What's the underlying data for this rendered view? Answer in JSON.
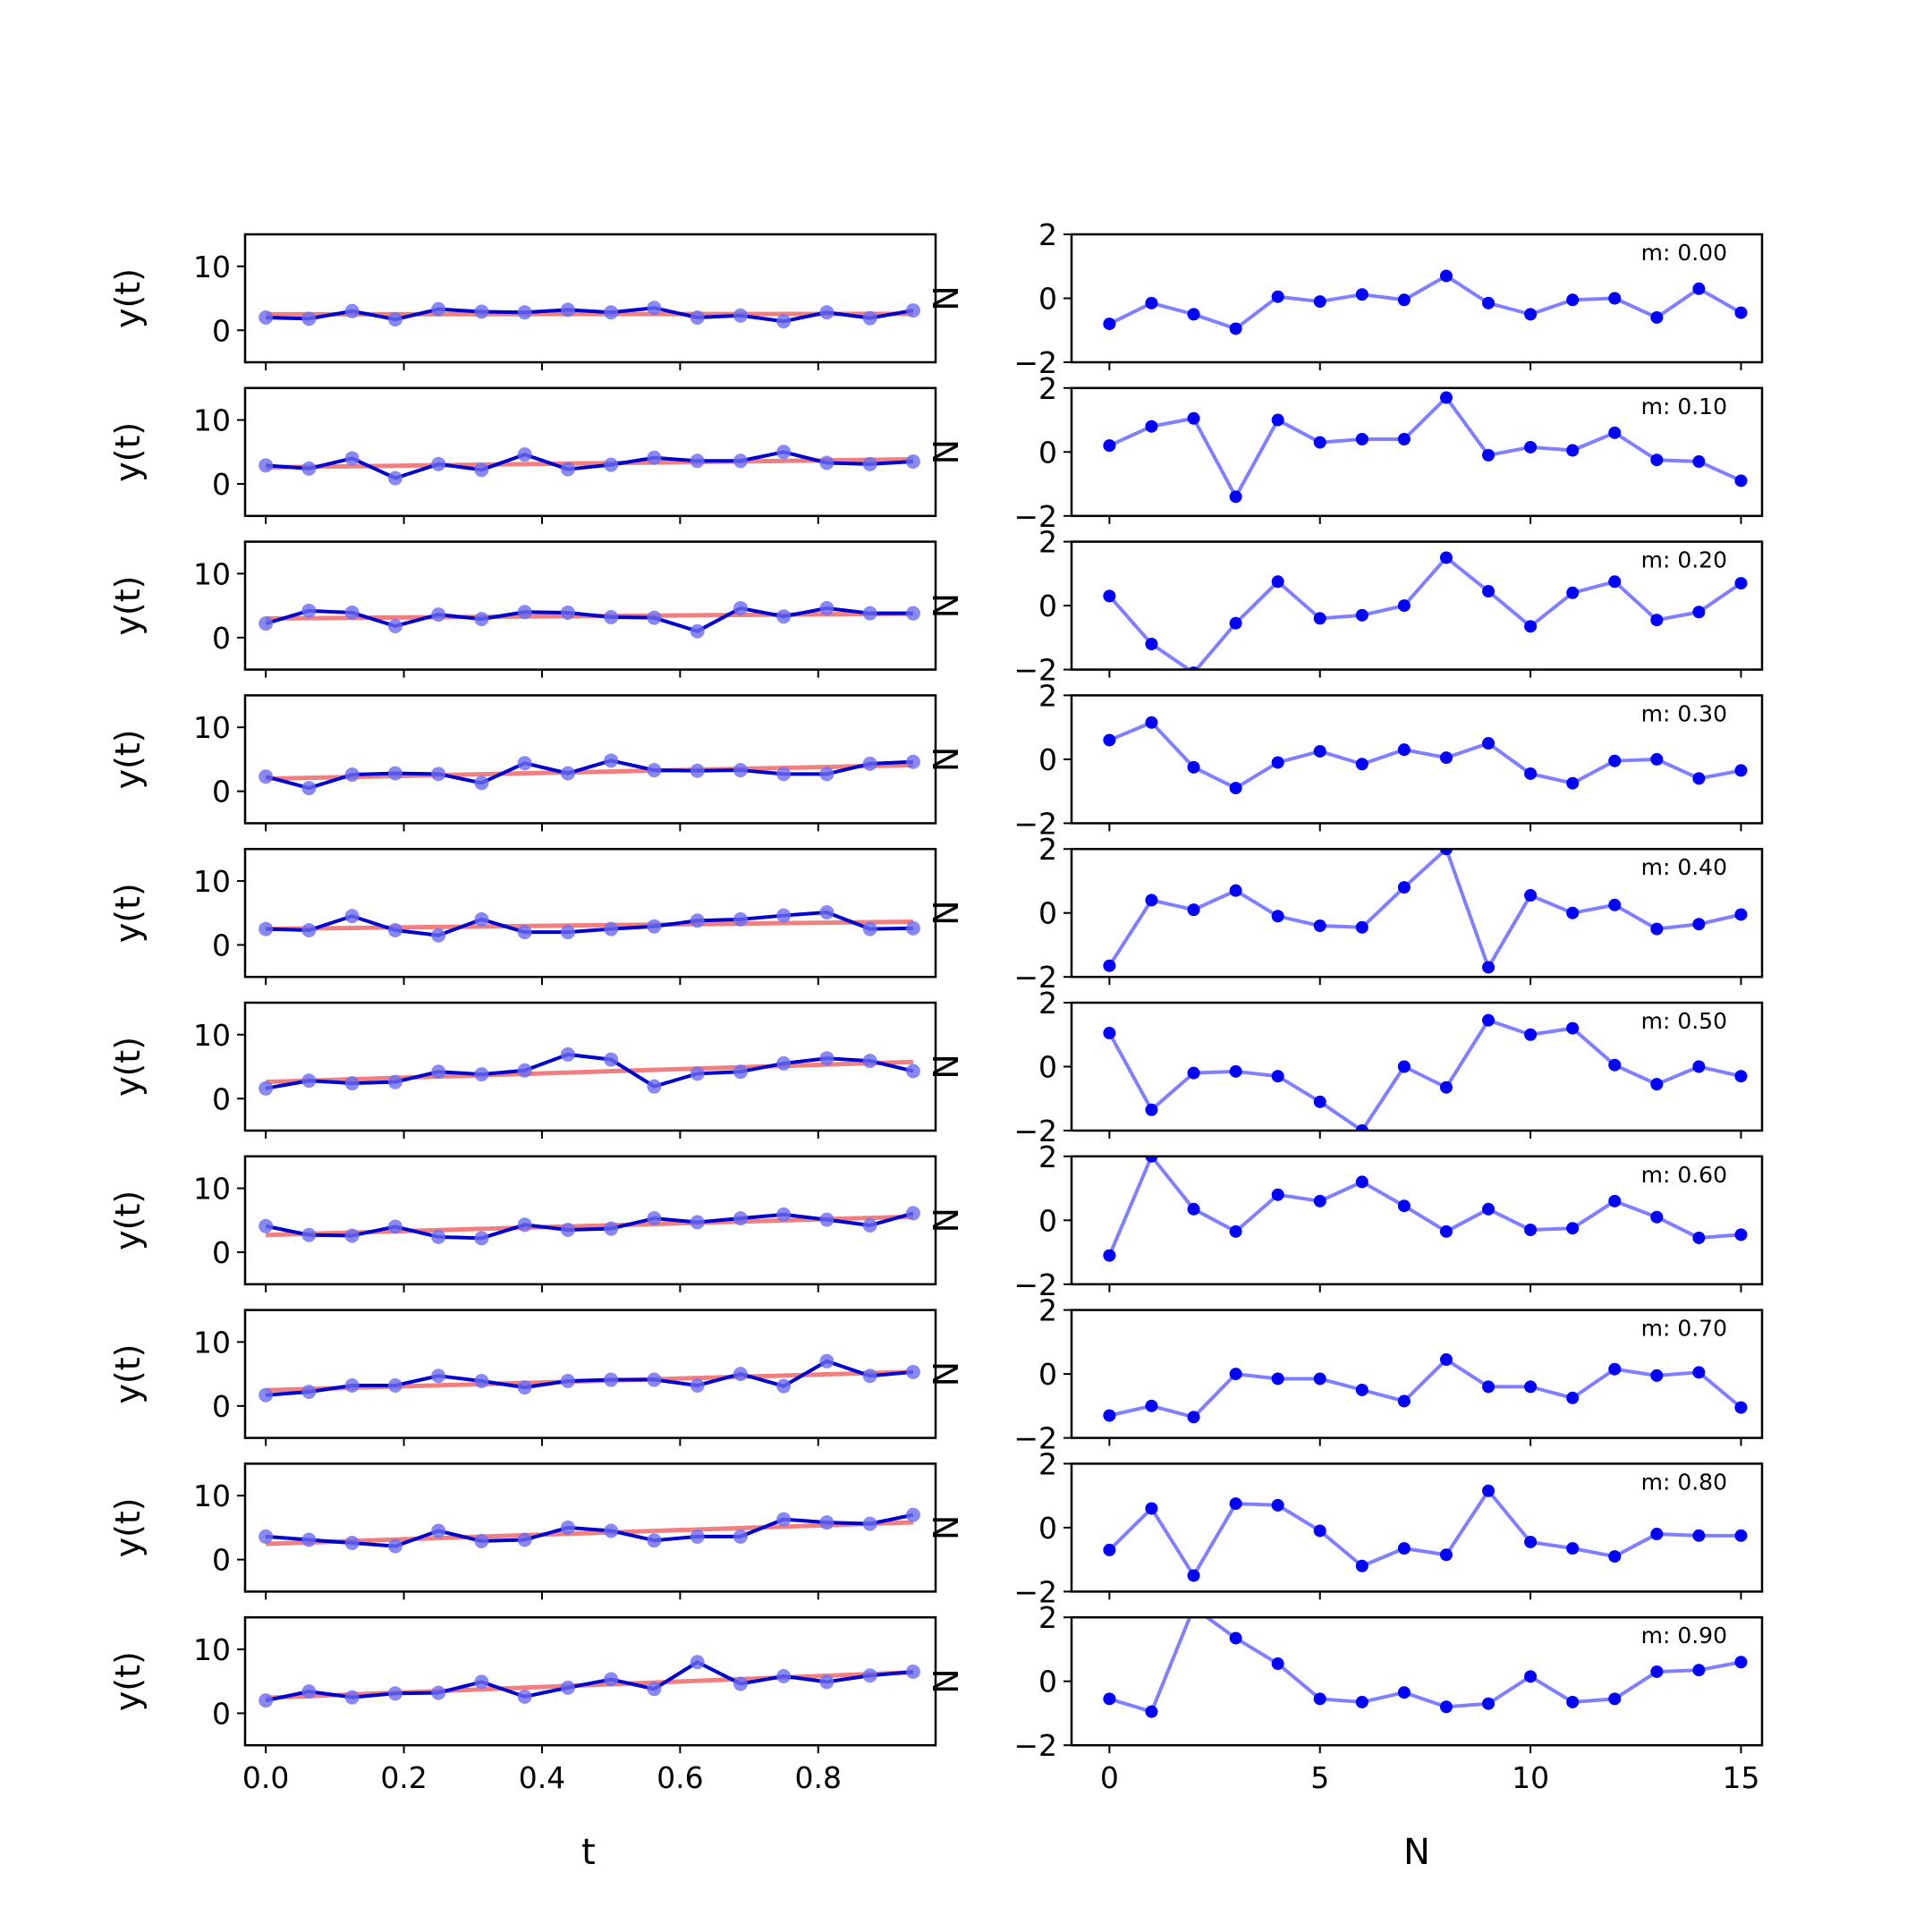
{
  "figure": {
    "left_xlabel": "t",
    "right_xlabel": "N",
    "left_ylabel": "y(t)",
    "right_ylabel": "N",
    "annotation_prefix": "m: "
  },
  "colors": {
    "fit_line": "#f08080",
    "data_line": "#0000cc",
    "data_marker": "#6b6bf2",
    "residual": "#0000ff",
    "residual_line": "#7f7fff",
    "axes": "#000000",
    "background": "#ffffff"
  },
  "chart_data": [
    {
      "type": "line",
      "panel": "left",
      "x_ticks": [
        "0.0",
        "0.2",
        "0.4",
        "0.6",
        "0.8"
      ],
      "x_tick_values": [
        0.0,
        0.2,
        0.4,
        0.6,
        0.8
      ],
      "xlim": [
        -0.03,
        0.97
      ],
      "ylim": [
        -5,
        15
      ],
      "y_ticks": [
        0,
        10
      ],
      "t": [
        0.0,
        0.0625,
        0.125,
        0.1875,
        0.25,
        0.3125,
        0.375,
        0.4375,
        0.5,
        0.5625,
        0.625,
        0.6875,
        0.75,
        0.8125,
        0.875,
        0.9375
      ],
      "series": [
        {
          "m": 0.0,
          "y": [
            2.0,
            1.8,
            3.0,
            1.7,
            3.3,
            2.9,
            2.8,
            3.2,
            2.8,
            3.5,
            2.0,
            2.3,
            1.4,
            2.8,
            1.9,
            3.1
          ]
        },
        {
          "m": 0.1,
          "y": [
            2.9,
            2.4,
            4.0,
            0.9,
            3.1,
            2.2,
            4.6,
            2.3,
            3.0,
            4.1,
            3.6,
            3.6,
            5.0,
            3.3,
            3.1,
            3.5
          ]
        },
        {
          "m": 0.2,
          "y": [
            2.2,
            4.2,
            3.9,
            1.8,
            3.6,
            2.9,
            4.0,
            3.9,
            3.2,
            3.1,
            1.0,
            4.6,
            3.3,
            4.6,
            3.8,
            3.8
          ]
        },
        {
          "m": 0.3,
          "y": [
            2.3,
            0.5,
            2.6,
            2.8,
            2.7,
            1.3,
            4.4,
            2.8,
            4.8,
            3.3,
            3.2,
            3.3,
            2.7,
            2.7,
            4.3,
            4.6
          ]
        },
        {
          "m": 0.4,
          "y": [
            2.5,
            2.3,
            4.5,
            2.3,
            1.5,
            4.0,
            2.0,
            2.0,
            2.5,
            2.9,
            3.8,
            4.0,
            4.6,
            5.1,
            2.5,
            2.6
          ]
        },
        {
          "m": 0.5,
          "y": [
            1.6,
            2.8,
            2.4,
            2.6,
            4.2,
            3.8,
            4.4,
            6.9,
            6.1,
            1.9,
            3.9,
            4.2,
            5.5,
            6.3,
            5.9,
            4.3
          ]
        },
        {
          "m": 0.6,
          "y": [
            4.1,
            2.7,
            2.6,
            4.0,
            2.4,
            2.2,
            4.3,
            3.5,
            3.7,
            5.3,
            4.7,
            5.3,
            5.9,
            5.1,
            4.2,
            6.1
          ]
        },
        {
          "m": 0.7,
          "y": [
            1.7,
            2.2,
            3.2,
            3.2,
            4.7,
            3.9,
            2.9,
            3.9,
            4.1,
            4.1,
            3.2,
            5.0,
            3.1,
            7.0,
            4.7,
            5.3
          ]
        },
        {
          "m": 0.8,
          "y": [
            3.6,
            3.1,
            2.6,
            2.1,
            4.5,
            2.9,
            3.1,
            5.0,
            4.5,
            3.0,
            3.6,
            3.6,
            6.3,
            5.8,
            5.6,
            7.0
          ]
        },
        {
          "m": 0.9,
          "y": [
            2.0,
            3.4,
            2.5,
            3.1,
            3.2,
            4.9,
            2.6,
            4.0,
            5.3,
            3.8,
            8.0,
            4.6,
            5.8,
            4.9,
            5.9,
            6.5
          ]
        }
      ]
    },
    {
      "type": "line",
      "panel": "right",
      "x_ticks": [
        "0",
        "5",
        "10",
        "15"
      ],
      "x_tick_values": [
        0,
        5,
        10,
        15
      ],
      "xlim": [
        -0.9,
        15.5
      ],
      "ylim": [
        -2,
        2
      ],
      "y_ticks": [
        -2,
        0,
        2
      ],
      "n": [
        0,
        1,
        2,
        3,
        4,
        5,
        6,
        7,
        8,
        9,
        10,
        11,
        12,
        13,
        14,
        15
      ],
      "series": [
        {
          "label": "m: 0.00",
          "values": [
            -0.8,
            -0.15,
            -0.5,
            -0.95,
            0.05,
            -0.1,
            0.12,
            -0.05,
            0.7,
            -0.15,
            -0.5,
            -0.05,
            0.0,
            -0.6,
            0.3,
            -0.45
          ]
        },
        {
          "label": "m: 0.10",
          "values": [
            0.2,
            0.8,
            1.05,
            -1.4,
            1.0,
            0.3,
            0.4,
            0.4,
            1.7,
            -0.1,
            0.15,
            0.05,
            0.6,
            -0.25,
            -0.3,
            -0.9
          ]
        },
        {
          "label": "m: 0.20",
          "values": [
            0.3,
            -1.2,
            -2.1,
            -0.55,
            0.75,
            -0.4,
            -0.3,
            0.0,
            1.5,
            0.45,
            -0.65,
            0.4,
            0.75,
            -0.45,
            -0.2,
            0.7
          ]
        },
        {
          "label": "m: 0.30",
          "values": [
            0.6,
            1.15,
            -0.25,
            -0.9,
            -0.1,
            0.25,
            -0.15,
            0.3,
            0.05,
            0.5,
            -0.45,
            -0.75,
            -0.05,
            0.0,
            -0.6,
            -0.35
          ]
        },
        {
          "label": "m: 0.40",
          "values": [
            -1.65,
            0.4,
            0.1,
            0.7,
            -0.1,
            -0.4,
            -0.45,
            0.8,
            2.0,
            -1.7,
            0.55,
            0.0,
            0.25,
            -0.5,
            -0.35,
            -0.05
          ]
        },
        {
          "label": "m: 0.50",
          "values": [
            1.05,
            -1.35,
            -0.2,
            -0.15,
            -0.3,
            -1.1,
            -2.0,
            0.0,
            -0.65,
            1.45,
            1.0,
            1.2,
            0.05,
            -0.55,
            0.0,
            -0.3
          ]
        },
        {
          "label": "m: 0.60",
          "values": [
            -1.1,
            2.0,
            0.35,
            -0.35,
            0.8,
            0.6,
            1.2,
            0.45,
            -0.35,
            0.35,
            -0.3,
            -0.25,
            0.6,
            0.1,
            -0.55,
            -0.45
          ]
        },
        {
          "label": "m: 0.70",
          "values": [
            -1.3,
            -1.0,
            -1.35,
            0.0,
            -0.15,
            -0.15,
            -0.5,
            -0.85,
            0.45,
            -0.4,
            -0.4,
            -0.75,
            0.15,
            -0.05,
            0.05,
            -1.05
          ]
        },
        {
          "label": "m: 0.80",
          "values": [
            -0.7,
            0.6,
            -1.5,
            0.75,
            0.7,
            -0.1,
            -1.2,
            -0.65,
            -0.85,
            1.15,
            -0.45,
            -0.65,
            -0.9,
            -0.2,
            -0.25,
            -0.25
          ]
        },
        {
          "label": "m: 0.90",
          "values": [
            -0.55,
            -0.95,
            2.3,
            1.35,
            0.55,
            -0.55,
            -0.65,
            -0.35,
            -0.8,
            -0.7,
            0.15,
            -0.65,
            -0.55,
            0.3,
            0.35,
            0.6
          ]
        }
      ]
    }
  ]
}
